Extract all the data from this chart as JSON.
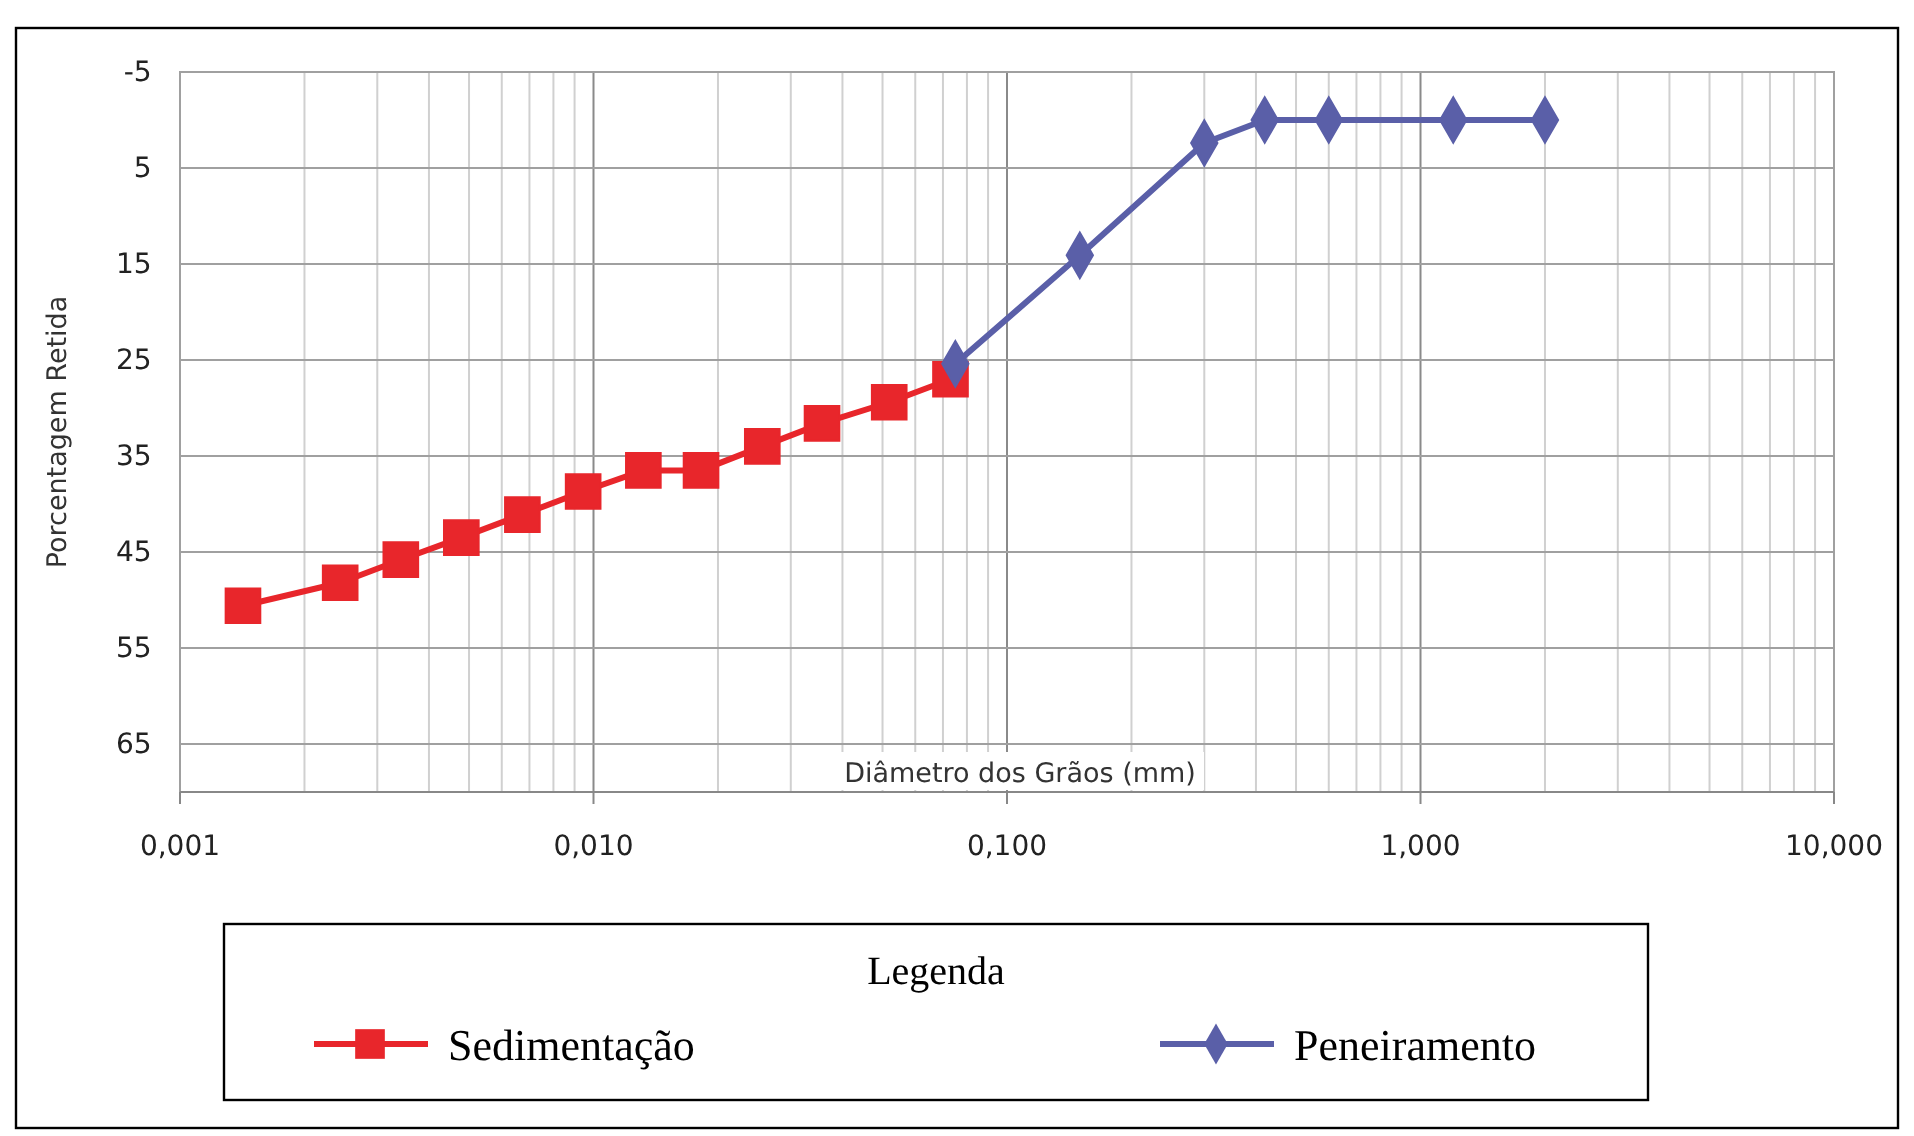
{
  "chart_data": {
    "type": "line",
    "xlabel": "Diâmetro dos Grãos (mm)",
    "ylabel": "Porcentagem Retida",
    "legend_title": "Legenda",
    "log": "x",
    "grid": true,
    "legend": "bottom",
    "xlim": [
      0.001,
      10
    ],
    "ylim": [
      70,
      -5
    ],
    "xticks": [
      {
        "value": 0.001,
        "label": "0,001"
      },
      {
        "value": 0.002,
        "label": null
      },
      {
        "value": 0.003,
        "label": null
      },
      {
        "value": 0.004,
        "label": null
      },
      {
        "value": 0.005,
        "label": null
      },
      {
        "value": 0.006,
        "label": null
      },
      {
        "value": 0.007,
        "label": null
      },
      {
        "value": 0.008,
        "label": null
      },
      {
        "value": 0.009,
        "label": null
      },
      {
        "value": 0.01,
        "label": "0,010"
      },
      {
        "value": 0.02,
        "label": null
      },
      {
        "value": 0.03,
        "label": null
      },
      {
        "value": 0.04,
        "label": null
      },
      {
        "value": 0.05,
        "label": null
      },
      {
        "value": 0.06,
        "label": null
      },
      {
        "value": 0.07,
        "label": null
      },
      {
        "value": 0.08,
        "label": null
      },
      {
        "value": 0.09,
        "label": null
      },
      {
        "value": 0.1,
        "label": "0,100"
      },
      {
        "value": 0.2,
        "label": null
      },
      {
        "value": 0.3,
        "label": null
      },
      {
        "value": 0.4,
        "label": null
      },
      {
        "value": 0.5,
        "label": null
      },
      {
        "value": 0.6,
        "label": null
      },
      {
        "value": 0.7,
        "label": null
      },
      {
        "value": 0.8,
        "label": null
      },
      {
        "value": 0.9,
        "label": null
      },
      {
        "value": 1,
        "label": "1,000"
      },
      {
        "value": 2,
        "label": null
      },
      {
        "value": 3,
        "label": null
      },
      {
        "value": 4,
        "label": null
      },
      {
        "value": 5,
        "label": null
      },
      {
        "value": 6,
        "label": null
      },
      {
        "value": 7,
        "label": null
      },
      {
        "value": 8,
        "label": null
      },
      {
        "value": 9,
        "label": null
      },
      {
        "value": 10,
        "label": "10,000"
      }
    ],
    "yticks": [
      -5,
      5,
      15,
      25,
      35,
      45,
      55,
      65
    ],
    "series": [
      {
        "name": "Sedimentação",
        "color": "#e8262b",
        "marker": "square",
        "x": [
          0.00142,
          0.00244,
          0.00342,
          0.00479,
          0.00673,
          0.00944,
          0.0132,
          0.0182,
          0.0256,
          0.0357,
          0.0519,
          0.073
        ],
        "values": [
          50.6,
          48.2,
          45.8,
          43.5,
          41.1,
          38.7,
          36.5,
          36.5,
          34.0,
          31.6,
          29.4,
          27.0
        ]
      },
      {
        "name": "Peneiramento",
        "color": "#5a5fa8",
        "marker": "diamond",
        "x": [
          0.075,
          0.15,
          0.3,
          0.42,
          0.6,
          1.2,
          2.0
        ],
        "values": [
          25.4,
          14.1,
          2.4,
          0,
          0,
          0,
          0
        ]
      }
    ]
  }
}
